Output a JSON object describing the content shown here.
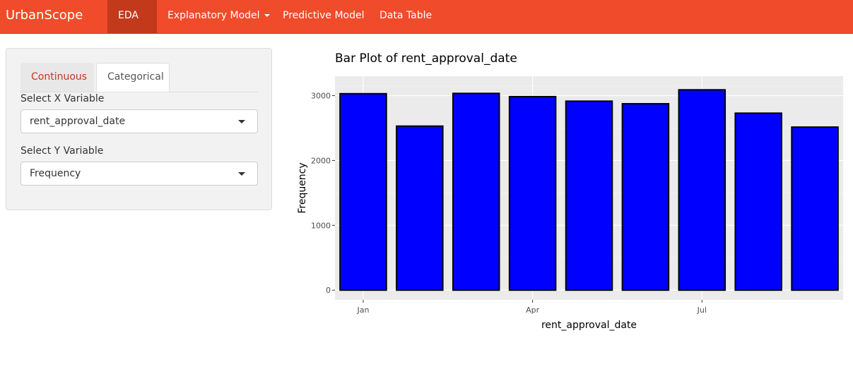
{
  "navbar": {
    "brand": "UrbanScope",
    "items": [
      {
        "label": "EDA",
        "dropdown": true,
        "active": true
      },
      {
        "label": "Explanatory Model",
        "dropdown": true,
        "active": false
      },
      {
        "label": "Predictive Model",
        "dropdown": false,
        "active": false
      },
      {
        "label": "Data Table",
        "dropdown": false,
        "active": false
      }
    ],
    "color": "#f04b2a",
    "active_color": "#c2391c"
  },
  "sidebar": {
    "tabs": [
      {
        "label": "Continuous",
        "active": false
      },
      {
        "label": "Categorical",
        "active": true
      }
    ],
    "x_select": {
      "label": "Select X Variable",
      "value": "rent_approval_date"
    },
    "y_select": {
      "label": "Select Y Variable",
      "value": "Frequency"
    }
  },
  "chart_data": {
    "type": "bar",
    "title": "Bar Plot of rent_approval_date",
    "xlabel": "rent_approval_date",
    "ylabel": "Frequency",
    "x_tick_labels": [
      "Jan",
      "Apr",
      "Jul"
    ],
    "x_tick_months": [
      1,
      4,
      7
    ],
    "months": [
      1,
      2,
      3,
      4,
      5,
      6,
      7,
      8,
      9
    ],
    "values": [
      3030,
      2530,
      3035,
      2985,
      2915,
      2875,
      3090,
      2730,
      2515
    ],
    "y_ticks": [
      0,
      1000,
      2000,
      3000
    ],
    "ylim": [
      -150,
      3300
    ],
    "xlim": [
      0.5,
      9.5
    ],
    "bar_fill": "#0000ff",
    "bar_stroke": "#000000",
    "panel_background": "#ebebeb",
    "grid": true
  }
}
